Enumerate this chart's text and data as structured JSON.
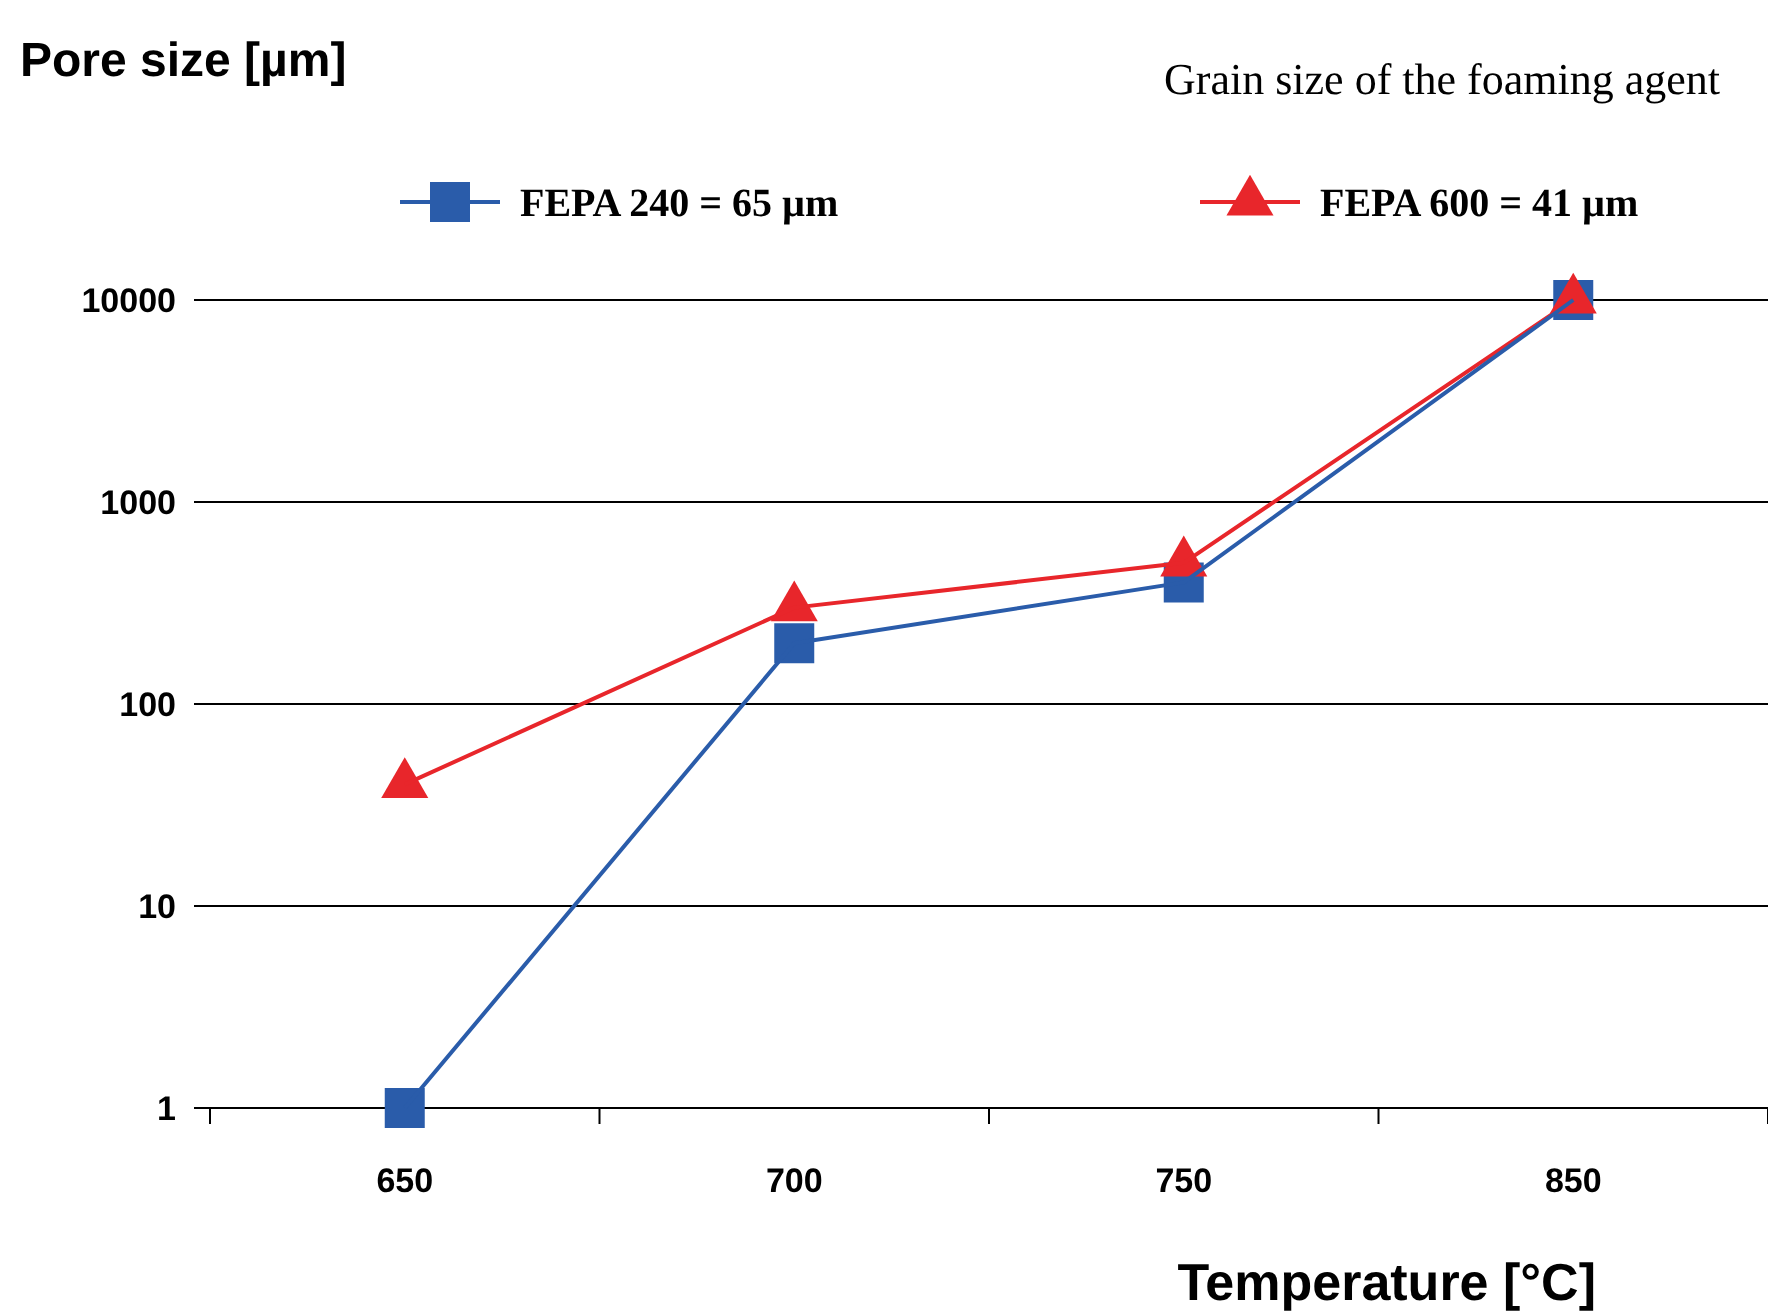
{
  "chart_data": {
    "type": "line",
    "ylabel": "Pore size [µm]",
    "xlabel": "Temperature [°C]",
    "legend_title": "Grain size of the foaming agent",
    "categories": [
      "650",
      "700",
      "750",
      "850"
    ],
    "log": "y",
    "ylim": [
      1,
      10000
    ],
    "yticks": [
      1,
      10,
      100,
      1000,
      10000
    ],
    "grid": "y",
    "legend": "top",
    "series": [
      {
        "name": "FEPA 240 = 65 µm",
        "color": "#2a5caa",
        "marker": "square",
        "values": [
          1,
          200,
          400,
          10000
        ]
      },
      {
        "name": "FEPA 600 = 41 µm",
        "color": "#e8262b",
        "marker": "triangle",
        "values": [
          40,
          300,
          500,
          10000
        ]
      }
    ]
  }
}
